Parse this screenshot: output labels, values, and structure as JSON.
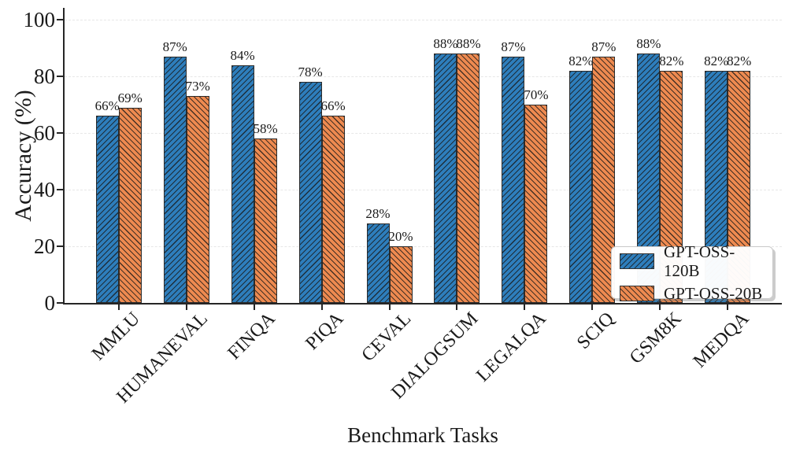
{
  "figure": {
    "background": "#ffffff",
    "text_color": "#1a1a1a",
    "axis_color": "#262626",
    "gridline_color": "#e7e7e7"
  },
  "chart_data": {
    "type": "bar",
    "title": "",
    "xlabel": "Benchmark Tasks",
    "ylabel": "Accuracy (%)",
    "ylim": [
      0,
      104
    ],
    "ytick_values": [
      0,
      20,
      40,
      60,
      80,
      100
    ],
    "ytick_labels": [
      "0",
      "20",
      "40",
      "60",
      "80",
      "100"
    ],
    "grid": "horizontal-light-dashed",
    "bar_label_format": "percent",
    "categories": [
      "MMLU",
      "HUMANEVAL",
      "FINQA",
      "PIQA",
      "CEVAL",
      "DIALOGSUM",
      "LEGALQA",
      "SCIQ",
      "GSM8K",
      "MEDQA"
    ],
    "series": [
      {
        "name": "GPT-OSS-120B",
        "color": "#2e7ebc",
        "hatch": "//",
        "values": [
          66,
          87,
          84,
          78,
          28,
          88,
          87,
          82,
          88,
          82
        ],
        "bar_labels": [
          "66%",
          "87%",
          "84%",
          "78%",
          "28%",
          "88%",
          "87%",
          "82%",
          "88%",
          "82%"
        ]
      },
      {
        "name": "GPT-OSS-20B",
        "color": "#ee8a50",
        "hatch": "\\",
        "values": [
          69,
          73,
          58,
          66,
          20,
          88,
          70,
          87,
          82,
          82
        ],
        "bar_labels": [
          "69%",
          "73%",
          "58%",
          "66%",
          "20%",
          "88%",
          "70%",
          "87%",
          "82%",
          "82%"
        ]
      }
    ],
    "legend": {
      "position": "lower-right-inside",
      "entries": [
        "GPT-OSS-120B",
        "GPT-OSS-20B"
      ]
    }
  }
}
